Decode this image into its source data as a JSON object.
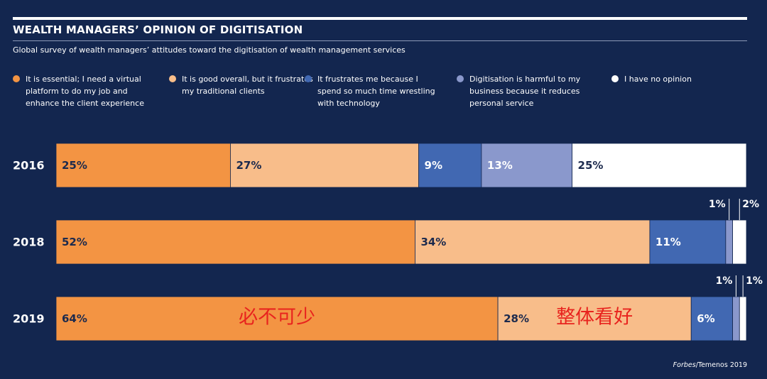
{
  "chart_data": {
    "type": "bar",
    "orientation": "horizontal",
    "stacked": true,
    "title": "WEALTH MANAGERS’ OPINION OF DIGITISATION",
    "subtitle": "Global survey of wealth managers’ attitudes toward the digitisation of wealth management services",
    "categories": [
      "2016",
      "2018",
      "2019"
    ],
    "series": [
      {
        "name": "It is essential; I need a virtual platform to do my job and enhance the client experience",
        "color": "#f39443",
        "values": [
          25,
          52,
          64
        ],
        "labels": [
          "25%",
          "52%",
          "64%"
        ]
      },
      {
        "name": "It is good overall, but it frustrates my traditional clients",
        "color": "#f8bd8a",
        "values": [
          27,
          34,
          28
        ],
        "labels": [
          "27%",
          "34%",
          "28%"
        ]
      },
      {
        "name": "It frustrates me because I spend so much time wrestling with technology",
        "color": "#4168b2",
        "values": [
          9,
          11,
          6
        ],
        "labels": [
          "9%",
          "11%",
          "6%"
        ]
      },
      {
        "name": "Digitisation is harmful to my business because it reduces personal service",
        "color": "#8a98cc",
        "values": [
          13,
          1,
          1
        ],
        "labels": [
          "13%",
          "1%",
          "1%"
        ]
      },
      {
        "name": "I have no opinion",
        "color": "#ffffff",
        "values": [
          25,
          2,
          1
        ],
        "labels": [
          "25%",
          "2%",
          "1%"
        ]
      }
    ],
    "annotations": [
      {
        "category": "2019",
        "series_index": 0,
        "text": "必不可少",
        "color": "#e8231e"
      },
      {
        "category": "2019",
        "series_index": 1,
        "text": "整体看好",
        "color": "#e8231e"
      }
    ],
    "xlim": [
      0,
      100
    ],
    "legend_position": "top",
    "grid": false,
    "source": {
      "publication": "Forbes",
      "rest": "/Temenos 2019"
    }
  }
}
